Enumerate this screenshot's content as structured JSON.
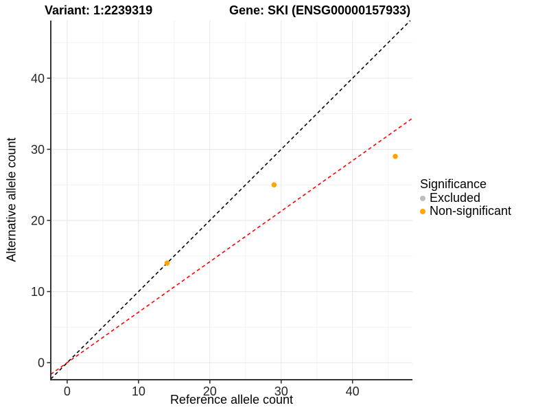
{
  "chart_data": {
    "type": "scatter",
    "title_left": "Variant: 1:2239319",
    "title_right": "Gene: SKI (ENSG00000157933)",
    "xlabel": "Reference allele count",
    "ylabel": "Alternative allele count",
    "xlim": [
      -2.3,
      48.4
    ],
    "ylim": [
      -2.4,
      48.1
    ],
    "xticks": [
      0,
      10,
      20,
      30,
      40
    ],
    "yticks": [
      0,
      10,
      20,
      30,
      40
    ],
    "xminor": [
      5,
      15,
      25,
      35,
      45
    ],
    "yminor": [
      5,
      15,
      25,
      35,
      45
    ],
    "grid": true,
    "series": [
      {
        "name": "Excluded",
        "color": "#BEBEBE",
        "points": []
      },
      {
        "name": "Non-significant",
        "color": "#FFA500",
        "points": [
          [
            14,
            14
          ],
          [
            29,
            25
          ],
          [
            46,
            29
          ]
        ]
      }
    ],
    "reference_lines": [
      {
        "name": "identity-line",
        "color": "#000000",
        "style": "dashed",
        "slope": 1,
        "intercept": 0
      },
      {
        "name": "allelic-ratio-line",
        "color": "#FF0000",
        "style": "dashed",
        "slope": 0.71,
        "intercept": 0
      }
    ],
    "legend": {
      "title": "Significance",
      "position": "right",
      "entries": [
        {
          "label": "Excluded",
          "color": "#BEBEBE"
        },
        {
          "label": "Non-significant",
          "color": "#FFA500"
        }
      ]
    },
    "theme": {
      "background": "#FFFFFF",
      "major_grid": "#E6E6E6",
      "minor_grid": "#F2F2F2",
      "axis_color": "#333333",
      "tick_color": "#262626"
    }
  }
}
